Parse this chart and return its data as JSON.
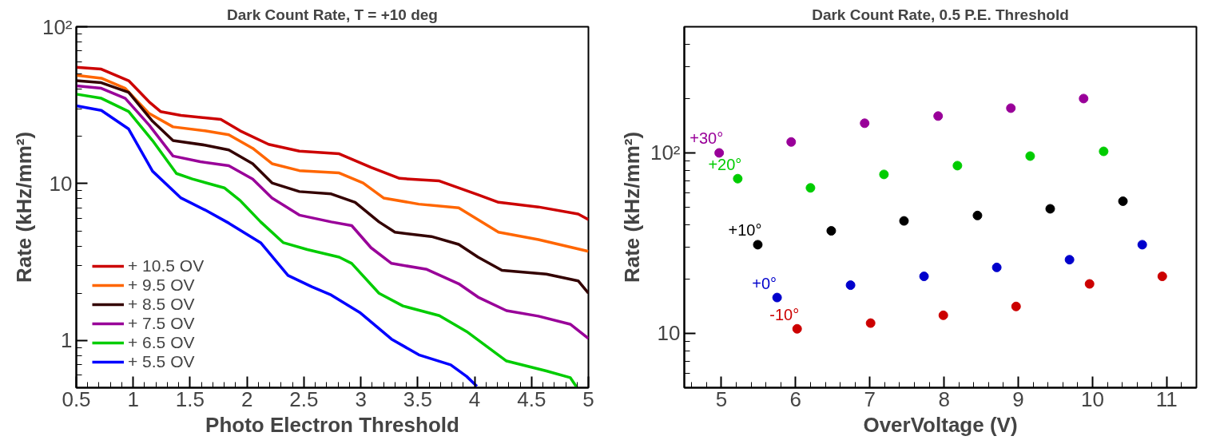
{
  "chart_data": [
    {
      "type": "line",
      "title": "Dark Count Rate, T = +10 deg",
      "xlabel": "Photo Electron Threshold",
      "ylabel": "Rate (kHz/mm²)",
      "log": "y",
      "grid": false,
      "legend": "bottom left",
      "marker": "none",
      "line_style": "solid",
      "xlim": [
        0.5,
        5
      ],
      "xticks": [
        0.5,
        1,
        1.5,
        2,
        2.5,
        3,
        3.5,
        4,
        4.5,
        5
      ],
      "ylim": [
        0.5,
        100
      ],
      "yticks": [
        1,
        10,
        {
          "value": 100,
          "label": "10²"
        }
      ],
      "series": [
        {
          "name": "+ 10.5 OV",
          "color": "#cc0000",
          "x": [
            0.5,
            0.72,
            0.96,
            1.14,
            1.24,
            1.42,
            1.77,
            1.94,
            2.19,
            2.46,
            2.81,
            3.09,
            3.34,
            3.69,
            4.03,
            4.21,
            4.56,
            4.91,
            5.0
          ],
          "values": [
            55.2,
            53.7,
            45.3,
            33.2,
            28.8,
            27.2,
            25.7,
            21.7,
            17.8,
            16.1,
            15.5,
            12.7,
            10.8,
            10.4,
            8.5,
            7.6,
            7.1,
            6.4,
            5.9
          ]
        },
        {
          "name": "+ 9.5 OV",
          "color": "#ff6600",
          "x": [
            0.5,
            0.72,
            0.93,
            1.14,
            1.35,
            1.63,
            1.84,
            2.05,
            2.22,
            2.46,
            2.81,
            3.02,
            3.2,
            3.51,
            3.86,
            4.21,
            4.56,
            5.0
          ],
          "values": [
            49,
            47,
            40.5,
            28,
            23,
            21.7,
            20.5,
            16.8,
            13.4,
            12.1,
            11.7,
            10.1,
            8.1,
            7.4,
            7.0,
            4.9,
            4.4,
            3.7
          ]
        },
        {
          "name": "+ 8.5 OV",
          "color": "#330000",
          "x": [
            0.5,
            0.72,
            0.96,
            1.17,
            1.35,
            1.63,
            1.84,
            2.05,
            2.22,
            2.46,
            2.74,
            2.95,
            3.16,
            3.3,
            3.62,
            3.86,
            4.03,
            4.24,
            4.63,
            4.91,
            5.0
          ],
          "values": [
            45.3,
            44,
            38.2,
            25,
            18.8,
            17.6,
            16.4,
            13.4,
            10.1,
            8.9,
            8.6,
            7.6,
            5.7,
            4.9,
            4.6,
            4.1,
            3.4,
            2.8,
            2.65,
            2.4,
            2.0
          ]
        },
        {
          "name": "+ 7.5 OV",
          "color": "#990099",
          "x": [
            0.5,
            0.72,
            0.93,
            1.14,
            1.35,
            1.59,
            1.84,
            2.05,
            2.22,
            2.46,
            2.74,
            2.92,
            3.09,
            3.27,
            3.58,
            3.86,
            4.03,
            4.28,
            4.56,
            4.84,
            5.0
          ],
          "values": [
            42,
            40.5,
            35,
            23.6,
            15,
            13.8,
            13.0,
            10.7,
            8.1,
            6.3,
            5.7,
            5.4,
            3.9,
            3.1,
            2.84,
            2.3,
            1.89,
            1.55,
            1.43,
            1.27,
            1.03
          ]
        },
        {
          "name": "+ 6.5 OV",
          "color": "#00cc00",
          "x": [
            0.5,
            0.72,
            0.96,
            1.17,
            1.38,
            1.52,
            1.8,
            1.94,
            2.12,
            2.32,
            2.53,
            2.81,
            2.92,
            3.16,
            3.37,
            3.69,
            3.93,
            4.28,
            4.63,
            4.84,
            4.9
          ],
          "values": [
            37.2,
            35,
            28.8,
            18.8,
            11.6,
            10.7,
            9.4,
            7.8,
            5.7,
            4.2,
            3.8,
            3.4,
            3.1,
            2.0,
            1.66,
            1.44,
            1.14,
            0.74,
            0.64,
            0.58,
            0.5
          ]
        },
        {
          "name": "+ 5.5 OV",
          "color": "#0000ff",
          "x": [
            0.5,
            0.72,
            0.96,
            1.17,
            1.42,
            1.63,
            1.84,
            2.12,
            2.36,
            2.57,
            2.74,
            2.99,
            3.27,
            3.51,
            3.79,
            3.93,
            4.02
          ],
          "values": [
            31.3,
            29.3,
            22.3,
            12,
            8.1,
            6.8,
            5.6,
            4.2,
            2.6,
            2.2,
            1.95,
            1.51,
            1.02,
            0.81,
            0.7,
            0.59,
            0.51
          ]
        }
      ]
    },
    {
      "type": "scatter",
      "title": "Dark Count Rate, 0.5 P.E. Threshold",
      "xlabel": "OverVoltage (V)",
      "ylabel": "Rate (kHz/mm²)",
      "log": "y",
      "grid": false,
      "legend": false,
      "marker": "circle",
      "xlim": [
        4.5,
        11.4
      ],
      "xticks": [
        5,
        6,
        7,
        8,
        9,
        10,
        11
      ],
      "ylim": [
        5,
        500
      ],
      "yticks": [
        10,
        {
          "value": 100,
          "label": "10²"
        }
      ],
      "series": [
        {
          "name": "+30°",
          "color": "#990099",
          "x": [
            4.97,
            5.94,
            6.93,
            7.92,
            8.9,
            9.88
          ],
          "values": [
            100,
            115,
            146,
            160,
            177,
            200
          ]
        },
        {
          "name": "+20°",
          "color": "#00cc00",
          "x": [
            5.22,
            6.2,
            7.19,
            8.18,
            9.16,
            10.15
          ],
          "values": [
            72,
            64,
            76,
            85,
            96,
            102
          ]
        },
        {
          "name": "+10°",
          "color": "#000000",
          "x": [
            5.49,
            6.48,
            7.46,
            8.45,
            9.43,
            10.41
          ],
          "values": [
            31,
            37,
            42,
            45,
            49,
            54
          ]
        },
        {
          "name": "+0°",
          "color": "#0000cc",
          "x": [
            5.75,
            6.74,
            7.73,
            8.71,
            9.69,
            10.67
          ],
          "values": [
            15.8,
            18.5,
            20.7,
            23.2,
            25.6,
            31
          ]
        },
        {
          "name": "-10°",
          "color": "#cc0000",
          "x": [
            6.02,
            7.01,
            7.99,
            8.97,
            9.96,
            10.94
          ],
          "values": [
            10.6,
            11.4,
            12.6,
            14.1,
            18.8,
            20.7
          ]
        }
      ]
    }
  ]
}
